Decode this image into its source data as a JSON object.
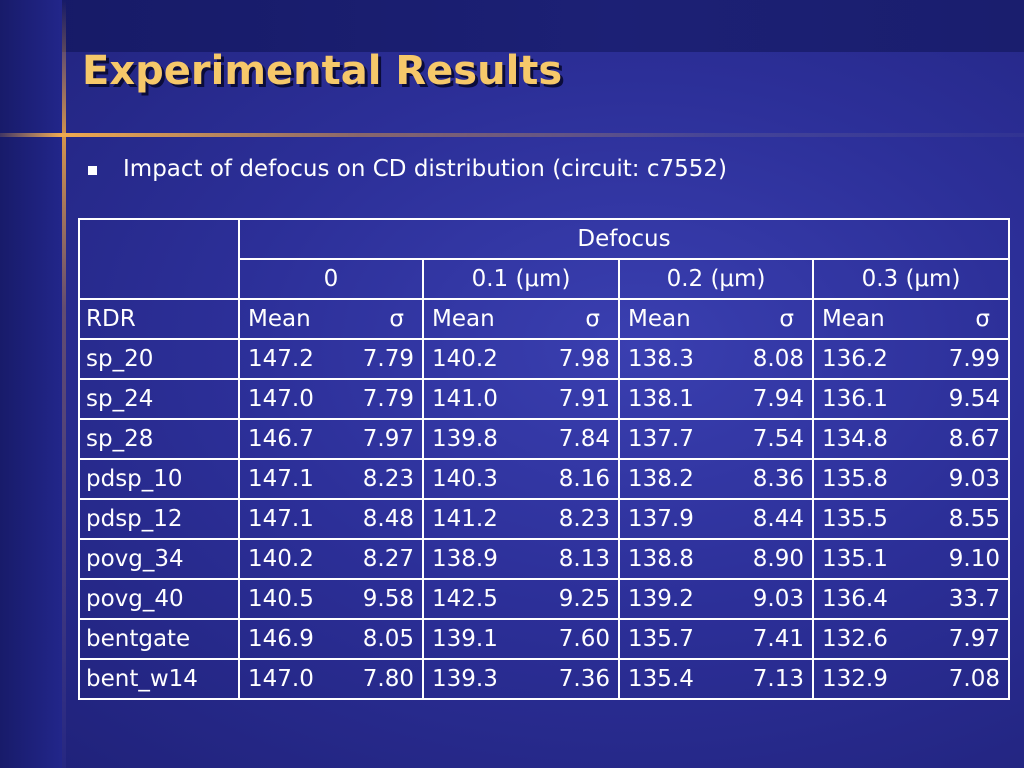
{
  "title": "Experimental Results",
  "bullet": "Impact of defocus on CD distribution (circuit: c7552)",
  "table": {
    "group_header": "Defocus",
    "defocus_levels": [
      "0",
      "0.1 (μm)",
      "0.2 (μm)",
      "0.3 (μm)"
    ],
    "row_header": "RDR",
    "stat_labels": [
      "Mean",
      "σ"
    ],
    "rows": [
      {
        "rdr": "sp_20",
        "values": [
          [
            "147.2",
            "7.79"
          ],
          [
            "140.2",
            "7.98"
          ],
          [
            "138.3",
            "8.08"
          ],
          [
            "136.2",
            "7.99"
          ]
        ]
      },
      {
        "rdr": "sp_24",
        "values": [
          [
            "147.0",
            "7.79"
          ],
          [
            "141.0",
            "7.91"
          ],
          [
            "138.1",
            "7.94"
          ],
          [
            "136.1",
            "9.54"
          ]
        ]
      },
      {
        "rdr": "sp_28",
        "values": [
          [
            "146.7",
            "7.97"
          ],
          [
            "139.8",
            "7.84"
          ],
          [
            "137.7",
            "7.54"
          ],
          [
            "134.8",
            "8.67"
          ]
        ]
      },
      {
        "rdr": "pdsp_10",
        "values": [
          [
            "147.1",
            "8.23"
          ],
          [
            "140.3",
            "8.16"
          ],
          [
            "138.2",
            "8.36"
          ],
          [
            "135.8",
            "9.03"
          ]
        ]
      },
      {
        "rdr": "pdsp_12",
        "values": [
          [
            "147.1",
            "8.48"
          ],
          [
            "141.2",
            "8.23"
          ],
          [
            "137.9",
            "8.44"
          ],
          [
            "135.5",
            "8.55"
          ]
        ]
      },
      {
        "rdr": "povg_34",
        "values": [
          [
            "140.2",
            "8.27"
          ],
          [
            "138.9",
            "8.13"
          ],
          [
            "138.8",
            "8.90"
          ],
          [
            "135.1",
            "9.10"
          ]
        ]
      },
      {
        "rdr": "povg_40",
        "values": [
          [
            "140.5",
            "9.58"
          ],
          [
            "142.5",
            "9.25"
          ],
          [
            "139.2",
            "9.03"
          ],
          [
            "136.4",
            "33.7"
          ]
        ]
      },
      {
        "rdr": "bentgate",
        "values": [
          [
            "146.9",
            "8.05"
          ],
          [
            "139.1",
            "7.60"
          ],
          [
            "135.7",
            "7.41"
          ],
          [
            "132.6",
            "7.97"
          ]
        ]
      },
      {
        "rdr": "bent_w14",
        "values": [
          [
            "147.0",
            "7.80"
          ],
          [
            "139.3",
            "7.36"
          ],
          [
            "135.4",
            "7.13"
          ],
          [
            "132.9",
            "7.08"
          ]
        ]
      }
    ]
  },
  "colors": {
    "title": "#f6c86a",
    "text": "#ffffff",
    "accent_line": "#f0aa50",
    "background": "#2c2f98"
  }
}
